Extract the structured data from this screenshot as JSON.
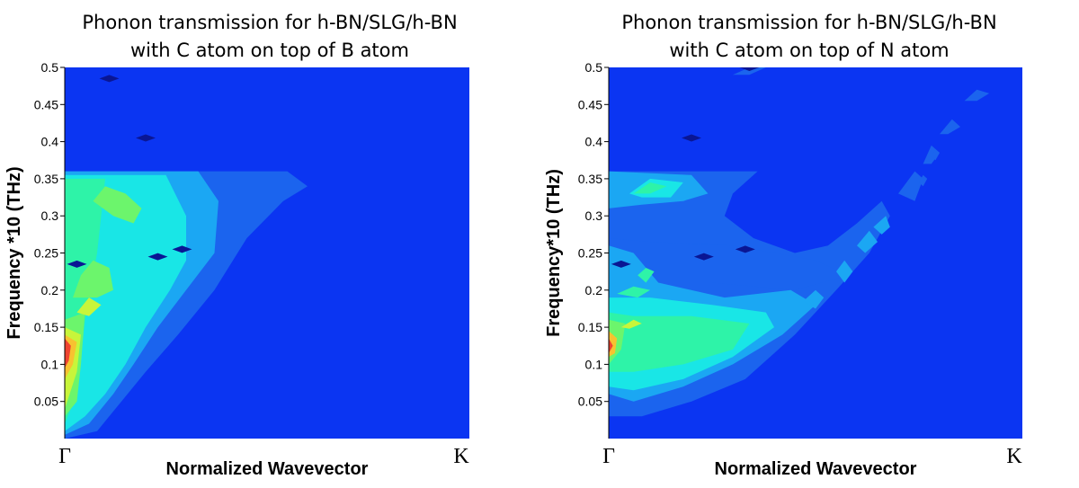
{
  "chart_data": [
    {
      "type": "heatmap",
      "title": [
        "Phonon transmission for h-BN/SLG/h-BN",
        "with C atom on top of B atom"
      ],
      "xlabel": "Normalized Wavevector",
      "ylabel": "Frequency *10 (THz)",
      "x_tick_labels": [
        "Γ",
        "K"
      ],
      "x_range": [
        0,
        1
      ],
      "ylim": [
        0,
        0.5
      ],
      "y_ticks": [
        "0.05",
        "0.1",
        "0.15",
        "0.2",
        "0.25",
        "0.3",
        "0.35",
        "0.4",
        "0.45",
        "0.5"
      ],
      "grid": false,
      "legend": "none",
      "colors": {
        "background": "#0b35f2",
        "level1": "#1b64ee",
        "level2": "#1ba7f3",
        "level3": "#19e6e6",
        "level4": "#2ef3a8",
        "level5": "#6cf56c",
        "level6": "#c8f53a",
        "level7": "#f7c230",
        "level8": "#ef4430",
        "dark": "#0a1694"
      },
      "regions": [
        {
          "level": 1,
          "points": [
            [
              0,
              0
            ],
            [
              0,
              0.36
            ],
            [
              0.55,
              0.36
            ],
            [
              0.6,
              0.34
            ],
            [
              0.54,
              0.32
            ],
            [
              0.45,
              0.27
            ],
            [
              0.37,
              0.2
            ],
            [
              0.28,
              0.14
            ],
            [
              0.2,
              0.09
            ],
            [
              0.14,
              0.05
            ],
            [
              0.08,
              0.01
            ]
          ]
        },
        {
          "level": 2,
          "points": [
            [
              0,
              0.005
            ],
            [
              0,
              0.36
            ],
            [
              0.33,
              0.36
            ],
            [
              0.38,
              0.32
            ],
            [
              0.37,
              0.25
            ],
            [
              0.3,
              0.2
            ],
            [
              0.23,
              0.15
            ],
            [
              0.17,
              0.1
            ],
            [
              0.12,
              0.06
            ],
            [
              0.06,
              0.02
            ]
          ]
        },
        {
          "level": 3,
          "points": [
            [
              0,
              0.01
            ],
            [
              0,
              0.355
            ],
            [
              0.25,
              0.355
            ],
            [
              0.3,
              0.3
            ],
            [
              0.3,
              0.24
            ],
            [
              0.26,
              0.2
            ],
            [
              0.2,
              0.15
            ],
            [
              0.15,
              0.1
            ],
            [
              0.1,
              0.06
            ],
            [
              0.05,
              0.03
            ]
          ]
        },
        {
          "level": 4,
          "points": [
            [
              0,
              0.02
            ],
            [
              0,
              0.35
            ],
            [
              0.1,
              0.35
            ],
            [
              0.08,
              0.25
            ],
            [
              0.05,
              0.16
            ],
            [
              0.03,
              0.06
            ]
          ]
        },
        {
          "level": 5,
          "points": [
            [
              0,
              0.03
            ],
            [
              0,
              0.16
            ],
            [
              0.05,
              0.17
            ],
            [
              0.04,
              0.1
            ],
            [
              0.03,
              0.05
            ]
          ]
        },
        {
          "level": 5,
          "points": [
            [
              0.02,
              0.19
            ],
            [
              0.04,
              0.22
            ],
            [
              0.07,
              0.24
            ],
            [
              0.11,
              0.23
            ],
            [
              0.12,
              0.2
            ],
            [
              0.08,
              0.19
            ]
          ]
        },
        {
          "level": 5,
          "points": [
            [
              0.07,
              0.32
            ],
            [
              0.1,
              0.34
            ],
            [
              0.15,
              0.33
            ],
            [
              0.19,
              0.31
            ],
            [
              0.17,
              0.29
            ],
            [
              0.12,
              0.3
            ]
          ]
        },
        {
          "level": 6,
          "points": [
            [
              0,
              0.04
            ],
            [
              0,
              0.15
            ],
            [
              0.04,
              0.14
            ],
            [
              0.03,
              0.09
            ]
          ]
        },
        {
          "level": 6,
          "points": [
            [
              0.03,
              0.17
            ],
            [
              0.06,
              0.19
            ],
            [
              0.09,
              0.18
            ],
            [
              0.06,
              0.165
            ]
          ]
        },
        {
          "level": 7,
          "points": [
            [
              0,
              0.08
            ],
            [
              0,
              0.14
            ],
            [
              0.03,
              0.13
            ],
            [
              0.02,
              0.1
            ]
          ]
        },
        {
          "level": 8,
          "points": [
            [
              0,
              0.095
            ],
            [
              0,
              0.135
            ],
            [
              0.015,
              0.125
            ],
            [
              0.01,
              0.105
            ]
          ]
        }
      ],
      "dark_spots": [
        [
          0.11,
          0.485
        ],
        [
          0.2,
          0.405
        ],
        [
          0.23,
          0.245
        ],
        [
          0.29,
          0.255
        ],
        [
          0.03,
          0.235
        ]
      ]
    },
    {
      "type": "heatmap",
      "title": [
        "Phonon transmission for h-BN/SLG/h-BN",
        "with C atom on top of N atom"
      ],
      "xlabel": "Normalized Wavevector",
      "ylabel": "Frequency*10 (THz)",
      "x_tick_labels": [
        "Γ",
        "K"
      ],
      "x_range": [
        0,
        1
      ],
      "ylim": [
        0,
        0.5
      ],
      "y_ticks": [
        "0.05",
        "0.1",
        "0.15",
        "0.2",
        "0.25",
        "0.3",
        "0.35",
        "0.4",
        "0.45",
        "0.5"
      ],
      "grid": false,
      "legend": "none",
      "colors": {
        "background": "#0b35f2",
        "level1": "#1b64ee",
        "level2": "#1ba7f3",
        "level3": "#19e6e6",
        "level4": "#2ef3a8",
        "level5": "#6cf56c",
        "level6": "#c8f53a",
        "level7": "#f7c230",
        "level8": "#ef4430",
        "dark": "#0a1694"
      },
      "regions": [
        {
          "level": 1,
          "points": [
            [
              0,
              0.03
            ],
            [
              0,
              0.36
            ],
            [
              0.36,
              0.36
            ],
            [
              0.3,
              0.33
            ],
            [
              0.28,
              0.3
            ],
            [
              0.35,
              0.27
            ],
            [
              0.45,
              0.25
            ],
            [
              0.53,
              0.26
            ],
            [
              0.6,
              0.29
            ],
            [
              0.66,
              0.32
            ],
            [
              0.68,
              0.3
            ],
            [
              0.63,
              0.25
            ],
            [
              0.55,
              0.2
            ],
            [
              0.45,
              0.14
            ],
            [
              0.33,
              0.08
            ],
            [
              0.2,
              0.05
            ],
            [
              0.08,
              0.03
            ]
          ]
        },
        {
          "level": 1,
          "points": [
            [
              0,
              0.21
            ],
            [
              0,
              0.27
            ],
            [
              0.1,
              0.265
            ],
            [
              0.3,
              0.26
            ],
            [
              0.5,
              0.24
            ],
            [
              0.58,
              0.22
            ],
            [
              0.45,
              0.2
            ],
            [
              0.25,
              0.21
            ]
          ]
        },
        {
          "level": 2,
          "points": [
            [
              0,
              0.06
            ],
            [
              0,
              0.26
            ],
            [
              0.06,
              0.25
            ],
            [
              0.12,
              0.21
            ],
            [
              0.28,
              0.19
            ],
            [
              0.44,
              0.2
            ],
            [
              0.5,
              0.18
            ],
            [
              0.42,
              0.14
            ],
            [
              0.3,
              0.1
            ],
            [
              0.18,
              0.07
            ],
            [
              0.06,
              0.05
            ]
          ]
        },
        {
          "level": 2,
          "points": [
            [
              0,
              0.31
            ],
            [
              0,
              0.36
            ],
            [
              0.2,
              0.355
            ],
            [
              0.24,
              0.33
            ],
            [
              0.18,
              0.32
            ],
            [
              0.08,
              0.315
            ]
          ]
        },
        {
          "level": 3,
          "points": [
            [
              0,
              0.07
            ],
            [
              0,
              0.19
            ],
            [
              0.1,
              0.19
            ],
            [
              0.25,
              0.18
            ],
            [
              0.38,
              0.17
            ],
            [
              0.4,
              0.15
            ],
            [
              0.3,
              0.11
            ],
            [
              0.18,
              0.08
            ],
            [
              0.06,
              0.065
            ]
          ]
        },
        {
          "level": 3,
          "points": [
            [
              0.05,
              0.33
            ],
            [
              0.1,
              0.35
            ],
            [
              0.18,
              0.345
            ],
            [
              0.15,
              0.325
            ],
            [
              0.08,
              0.325
            ]
          ]
        },
        {
          "level": 4,
          "points": [
            [
              0,
              0.09
            ],
            [
              0,
              0.17
            ],
            [
              0.06,
              0.165
            ],
            [
              0.2,
              0.165
            ],
            [
              0.34,
              0.155
            ],
            [
              0.3,
              0.12
            ],
            [
              0.18,
              0.1
            ],
            [
              0.06,
              0.09
            ]
          ]
        },
        {
          "level": 4,
          "points": [
            [
              0.07,
              0.22
            ],
            [
              0.09,
              0.23
            ],
            [
              0.11,
              0.225
            ],
            [
              0.09,
              0.21
            ]
          ]
        },
        {
          "level": 4,
          "points": [
            [
              0.02,
              0.195
            ],
            [
              0.06,
              0.205
            ],
            [
              0.1,
              0.2
            ],
            [
              0.07,
              0.19
            ]
          ]
        },
        {
          "level": 4,
          "points": [
            [
              0.06,
              0.33
            ],
            [
              0.1,
              0.345
            ],
            [
              0.14,
              0.34
            ],
            [
              0.1,
              0.33
            ]
          ]
        },
        {
          "level": 5,
          "points": [
            [
              0,
              0.1
            ],
            [
              0,
              0.16
            ],
            [
              0.04,
              0.155
            ],
            [
              0.03,
              0.12
            ]
          ]
        },
        {
          "level": 6,
          "points": [
            [
              0.03,
              0.15
            ],
            [
              0.06,
              0.16
            ],
            [
              0.08,
              0.155
            ],
            [
              0.05,
              0.148
            ]
          ]
        },
        {
          "level": 7,
          "points": [
            [
              0,
              0.11
            ],
            [
              0,
              0.145
            ],
            [
              0.02,
              0.135
            ],
            [
              0.015,
              0.115
            ]
          ]
        },
        {
          "level": 8,
          "points": [
            [
              0,
              0.115
            ],
            [
              0,
              0.135
            ],
            [
              0.01,
              0.125
            ]
          ]
        },
        {
          "level": 2,
          "points": [
            [
              0.47,
              0.185
            ],
            [
              0.5,
              0.2
            ],
            [
              0.52,
              0.19
            ],
            [
              0.5,
              0.175
            ]
          ]
        },
        {
          "level": 2,
          "points": [
            [
              0.55,
              0.225
            ],
            [
              0.57,
              0.24
            ],
            [
              0.59,
              0.225
            ],
            [
              0.57,
              0.21
            ]
          ]
        },
        {
          "level": 2,
          "points": [
            [
              0.6,
              0.26
            ],
            [
              0.63,
              0.28
            ],
            [
              0.65,
              0.265
            ],
            [
              0.62,
              0.25
            ]
          ]
        },
        {
          "level": 2,
          "points": [
            [
              0.64,
              0.285
            ],
            [
              0.67,
              0.3
            ],
            [
              0.68,
              0.285
            ],
            [
              0.66,
              0.275
            ]
          ]
        },
        {
          "level": 1,
          "points": [
            [
              0.7,
              0.33
            ],
            [
              0.74,
              0.36
            ],
            [
              0.76,
              0.35
            ],
            [
              0.74,
              0.32
            ]
          ]
        },
        {
          "level": 1,
          "points": [
            [
              0.76,
              0.37
            ],
            [
              0.78,
              0.395
            ],
            [
              0.8,
              0.385
            ],
            [
              0.78,
              0.37
            ]
          ]
        },
        {
          "level": 1,
          "points": [
            [
              0.8,
              0.41
            ],
            [
              0.83,
              0.43
            ],
            [
              0.85,
              0.42
            ],
            [
              0.82,
              0.41
            ]
          ]
        },
        {
          "level": 1,
          "points": [
            [
              0.86,
              0.455
            ],
            [
              0.89,
              0.47
            ],
            [
              0.92,
              0.465
            ],
            [
              0.89,
              0.455
            ]
          ]
        },
        {
          "level": 1,
          "points": [
            [
              0.3,
              0.49
            ],
            [
              0.34,
              0.5
            ],
            [
              0.38,
              0.5
            ],
            [
              0.34,
              0.49
            ]
          ]
        },
        {
          "level": 1,
          "points": [
            [
              0.75,
              0.345
            ],
            [
              0.76,
              0.355
            ],
            [
              0.77,
              0.35
            ],
            [
              0.76,
              0.34
            ]
          ]
        },
        {
          "level": 1,
          "points": [
            [
              0.78,
              0.38
            ],
            [
              0.79,
              0.39
            ],
            [
              0.8,
              0.385
            ],
            [
              0.79,
              0.375
            ]
          ]
        }
      ],
      "dark_spots": [
        [
          0.2,
          0.405
        ],
        [
          0.23,
          0.245
        ],
        [
          0.33,
          0.255
        ],
        [
          0.03,
          0.235
        ],
        [
          0.34,
          0.5
        ]
      ]
    }
  ]
}
